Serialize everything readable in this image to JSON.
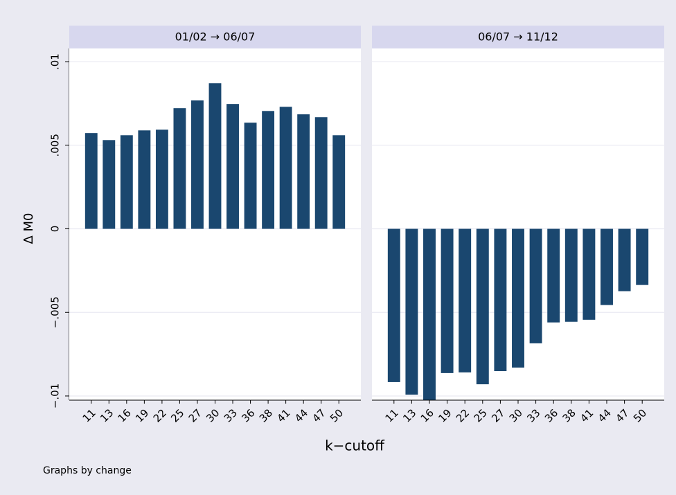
{
  "chart_data": {
    "type": "bar",
    "categories": [
      "11",
      "13",
      "16",
      "19",
      "22",
      "25",
      "27",
      "30",
      "33",
      "36",
      "38",
      "41",
      "44",
      "47",
      "50"
    ],
    "panels": [
      {
        "title": "01/02 → 06/07",
        "values": [
          0.00573,
          0.00531,
          0.0056,
          0.00589,
          0.00593,
          0.00722,
          0.00768,
          0.00871,
          0.00747,
          0.00635,
          0.00705,
          0.0073,
          0.00685,
          0.00668,
          0.0056
        ]
      },
      {
        "title": "06/07 → 11/12",
        "values": [
          -0.00917,
          -0.00992,
          -0.0103,
          -0.00863,
          -0.00859,
          -0.0093,
          -0.00851,
          -0.0083,
          -0.00685,
          -0.0056,
          -0.00556,
          -0.00544,
          -0.00456,
          -0.00373,
          -0.00336
        ]
      }
    ],
    "color": "#1a476f",
    "ylabel": "Δ M0",
    "xlabel": "k−cutoff",
    "note": "Graphs by change",
    "ylim": [
      -0.01025,
      0.01079
    ],
    "yticks": [
      {
        "value": -0.01,
        "label": "−.01"
      },
      {
        "value": -0.005,
        "label": "−.005"
      },
      0,
      {
        "value": 0.005,
        "label": ".005"
      },
      {
        "value": 0.01,
        "label": ".01"
      }
    ],
    "grid": true
  }
}
